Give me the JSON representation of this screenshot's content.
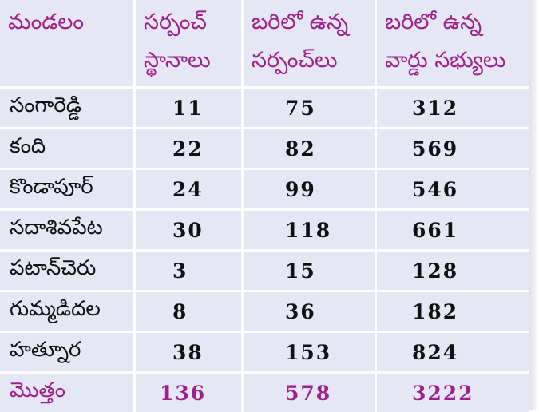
{
  "table": {
    "headers": [
      [
        "మండలం"
      ],
      [
        "సర్పంచ్",
        "స్థానాలు"
      ],
      [
        "బరిలో ఉన్న",
        "సర్పంచ్‌లు"
      ],
      [
        "బరిలో ఉన్న",
        "వార్డు సభ్యులు"
      ]
    ],
    "rows": [
      {
        "mandal": "సంగారెడ్డి",
        "sarpanch_posts": "11",
        "sarpanch_candidates": "75",
        "ward_candidates": "312"
      },
      {
        "mandal": "కంది",
        "sarpanch_posts": "22",
        "sarpanch_candidates": "82",
        "ward_candidates": "569"
      },
      {
        "mandal": "కొండాపూర్",
        "sarpanch_posts": "24",
        "sarpanch_candidates": "99",
        "ward_candidates": "546"
      },
      {
        "mandal": "సదాశివపేట",
        "sarpanch_posts": "30",
        "sarpanch_candidates": "118",
        "ward_candidates": "661"
      },
      {
        "mandal": "పటాన్‌చెరు",
        "sarpanch_posts": "3",
        "sarpanch_candidates": "15",
        "ward_candidates": "128"
      },
      {
        "mandal": "గుమ్మడిదల",
        "sarpanch_posts": "8",
        "sarpanch_candidates": "36",
        "ward_candidates": "182"
      },
      {
        "mandal": "హత్నూర",
        "sarpanch_posts": "38",
        "sarpanch_candidates": "153",
        "ward_candidates": "824"
      }
    ],
    "total": {
      "mandal": "మొత్తం",
      "sarpanch_posts": "136",
      "sarpanch_candidates": "578",
      "ward_candidates": "3222"
    }
  },
  "colors": {
    "accent": "#a0208a",
    "cell_background": "#e6e7f4",
    "text": "#111111"
  }
}
